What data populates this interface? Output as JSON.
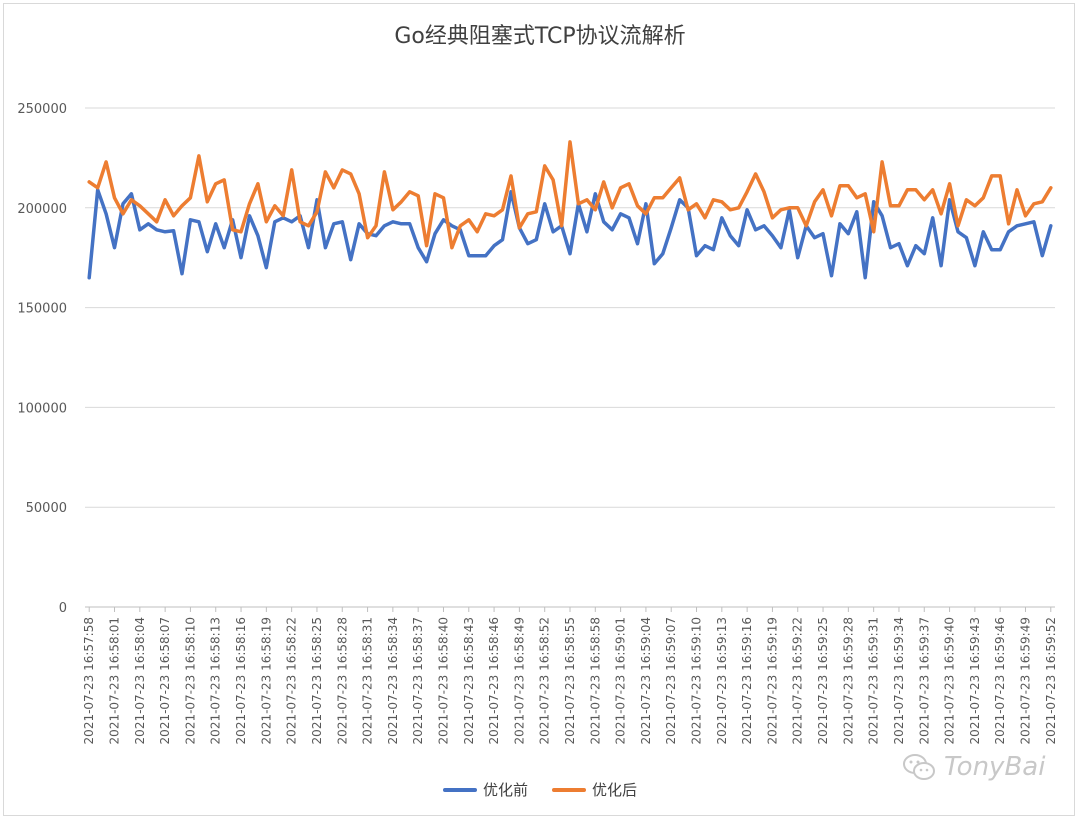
{
  "chart_data": {
    "type": "line",
    "title": "Go经典阻塞式TCP协议流解析",
    "xlabel": "",
    "ylabel": "",
    "ylim": [
      0,
      250000
    ],
    "yticks": [
      "0",
      "50000",
      "100000",
      "150000",
      "200000",
      "250000"
    ],
    "xtick_labels": [
      "2021-07-23 16:57:58",
      "2021-07-23 16:58:01",
      "2021-07-23 16:58:04",
      "2021-07-23 16:58:07",
      "2021-07-23 16:58:10",
      "2021-07-23 16:58:13",
      "2021-07-23 16:58:16",
      "2021-07-23 16:58:19",
      "2021-07-23 16:58:22",
      "2021-07-23 16:58:25",
      "2021-07-23 16:58:28",
      "2021-07-23 16:58:31",
      "2021-07-23 16:58:34",
      "2021-07-23 16:58:37",
      "2021-07-23 16:58:40",
      "2021-07-23 16:58:43",
      "2021-07-23 16:58:46",
      "2021-07-23 16:58:49",
      "2021-07-23 16:58:52",
      "2021-07-23 16:58:55",
      "2021-07-23 16:58:58",
      "2021-07-23 16:59:01",
      "2021-07-23 16:59:04",
      "2021-07-23 16:59:07",
      "2021-07-23 16:59:10",
      "2021-07-23 16:59:13",
      "2021-07-23 16:59:16",
      "2021-07-23 16:59:19",
      "2021-07-23 16:59:22",
      "2021-07-23 16:59:25",
      "2021-07-23 16:59:28",
      "2021-07-23 16:59:31",
      "2021-07-23 16:59:34",
      "2021-07-23 16:59:37",
      "2021-07-23 16:59:40",
      "2021-07-23 16:59:43",
      "2021-07-23 16:59:46",
      "2021-07-23 16:59:49",
      "2021-07-23 16:59:52"
    ],
    "legend_position": "bottom",
    "series": [
      {
        "name": "优化前",
        "color": "#4472C4",
        "values": [
          165000,
          209000,
          197000,
          180000,
          202000,
          207000,
          189000,
          192000,
          189000,
          188000,
          188500,
          167000,
          194000,
          193000,
          178000,
          192000,
          180000,
          194000,
          175000,
          196000,
          186000,
          170000,
          193000,
          195000,
          193000,
          196000,
          180000,
          204000,
          180000,
          192000,
          193000,
          174000,
          192000,
          187000,
          186000,
          191000,
          193000,
          192000,
          192000,
          180000,
          173000,
          187000,
          194000,
          191000,
          189000,
          176000,
          176000,
          176000,
          181000,
          184000,
          208000,
          190000,
          182000,
          184000,
          202000,
          188000,
          191000,
          177000,
          202000,
          188000,
          207000,
          193000,
          189000,
          197000,
          195000,
          182000,
          202000,
          172000,
          177000,
          190000,
          204000,
          200000,
          176000,
          181000,
          179000,
          195000,
          186000,
          181000,
          199000,
          189000,
          191000,
          186000,
          180000,
          199000,
          175000,
          191000,
          185000,
          187000,
          166000,
          192000,
          187000,
          198000,
          165000,
          203000,
          196000,
          180000,
          182000,
          171000,
          181000,
          177000,
          195000,
          171000,
          204000,
          188000,
          185000,
          171000,
          188000,
          179000,
          179000,
          188000,
          191000,
          192000,
          193000,
          176000,
          191000
        ]
      },
      {
        "name": "优化后",
        "color": "#ED7D31",
        "values": [
          213000,
          210000,
          223000,
          205000,
          197000,
          204000,
          201000,
          197000,
          193000,
          204000,
          196000,
          201000,
          205000,
          226000,
          203000,
          212000,
          214000,
          189000,
          188000,
          202000,
          212000,
          193000,
          201000,
          196000,
          219000,
          193000,
          191000,
          198000,
          218000,
          210000,
          219000,
          217000,
          207000,
          185000,
          191000,
          218000,
          199000,
          203000,
          208000,
          206000,
          181000,
          207000,
          205000,
          180000,
          191000,
          194000,
          188000,
          197000,
          196000,
          199000,
          216000,
          190000,
          197000,
          198000,
          221000,
          214000,
          191000,
          233000,
          202000,
          204000,
          199000,
          213000,
          200000,
          210000,
          212000,
          201000,
          197000,
          205000,
          205000,
          210000,
          215000,
          199000,
          202000,
          195000,
          204000,
          203000,
          199000,
          200000,
          208000,
          217000,
          208000,
          195000,
          199000,
          200000,
          200000,
          191000,
          203000,
          209000,
          196000,
          211000,
          211000,
          205000,
          207000,
          188000,
          223000,
          201000,
          201000,
          209000,
          209000,
          204000,
          209000,
          197000,
          212000,
          191000,
          204000,
          201000,
          205000,
          216000,
          216000,
          192000,
          209000,
          196000,
          202000,
          203000,
          210000
        ]
      }
    ]
  },
  "legend": {
    "items": [
      "优化前",
      "优化后"
    ]
  },
  "watermark": {
    "text": "TonyBai"
  }
}
